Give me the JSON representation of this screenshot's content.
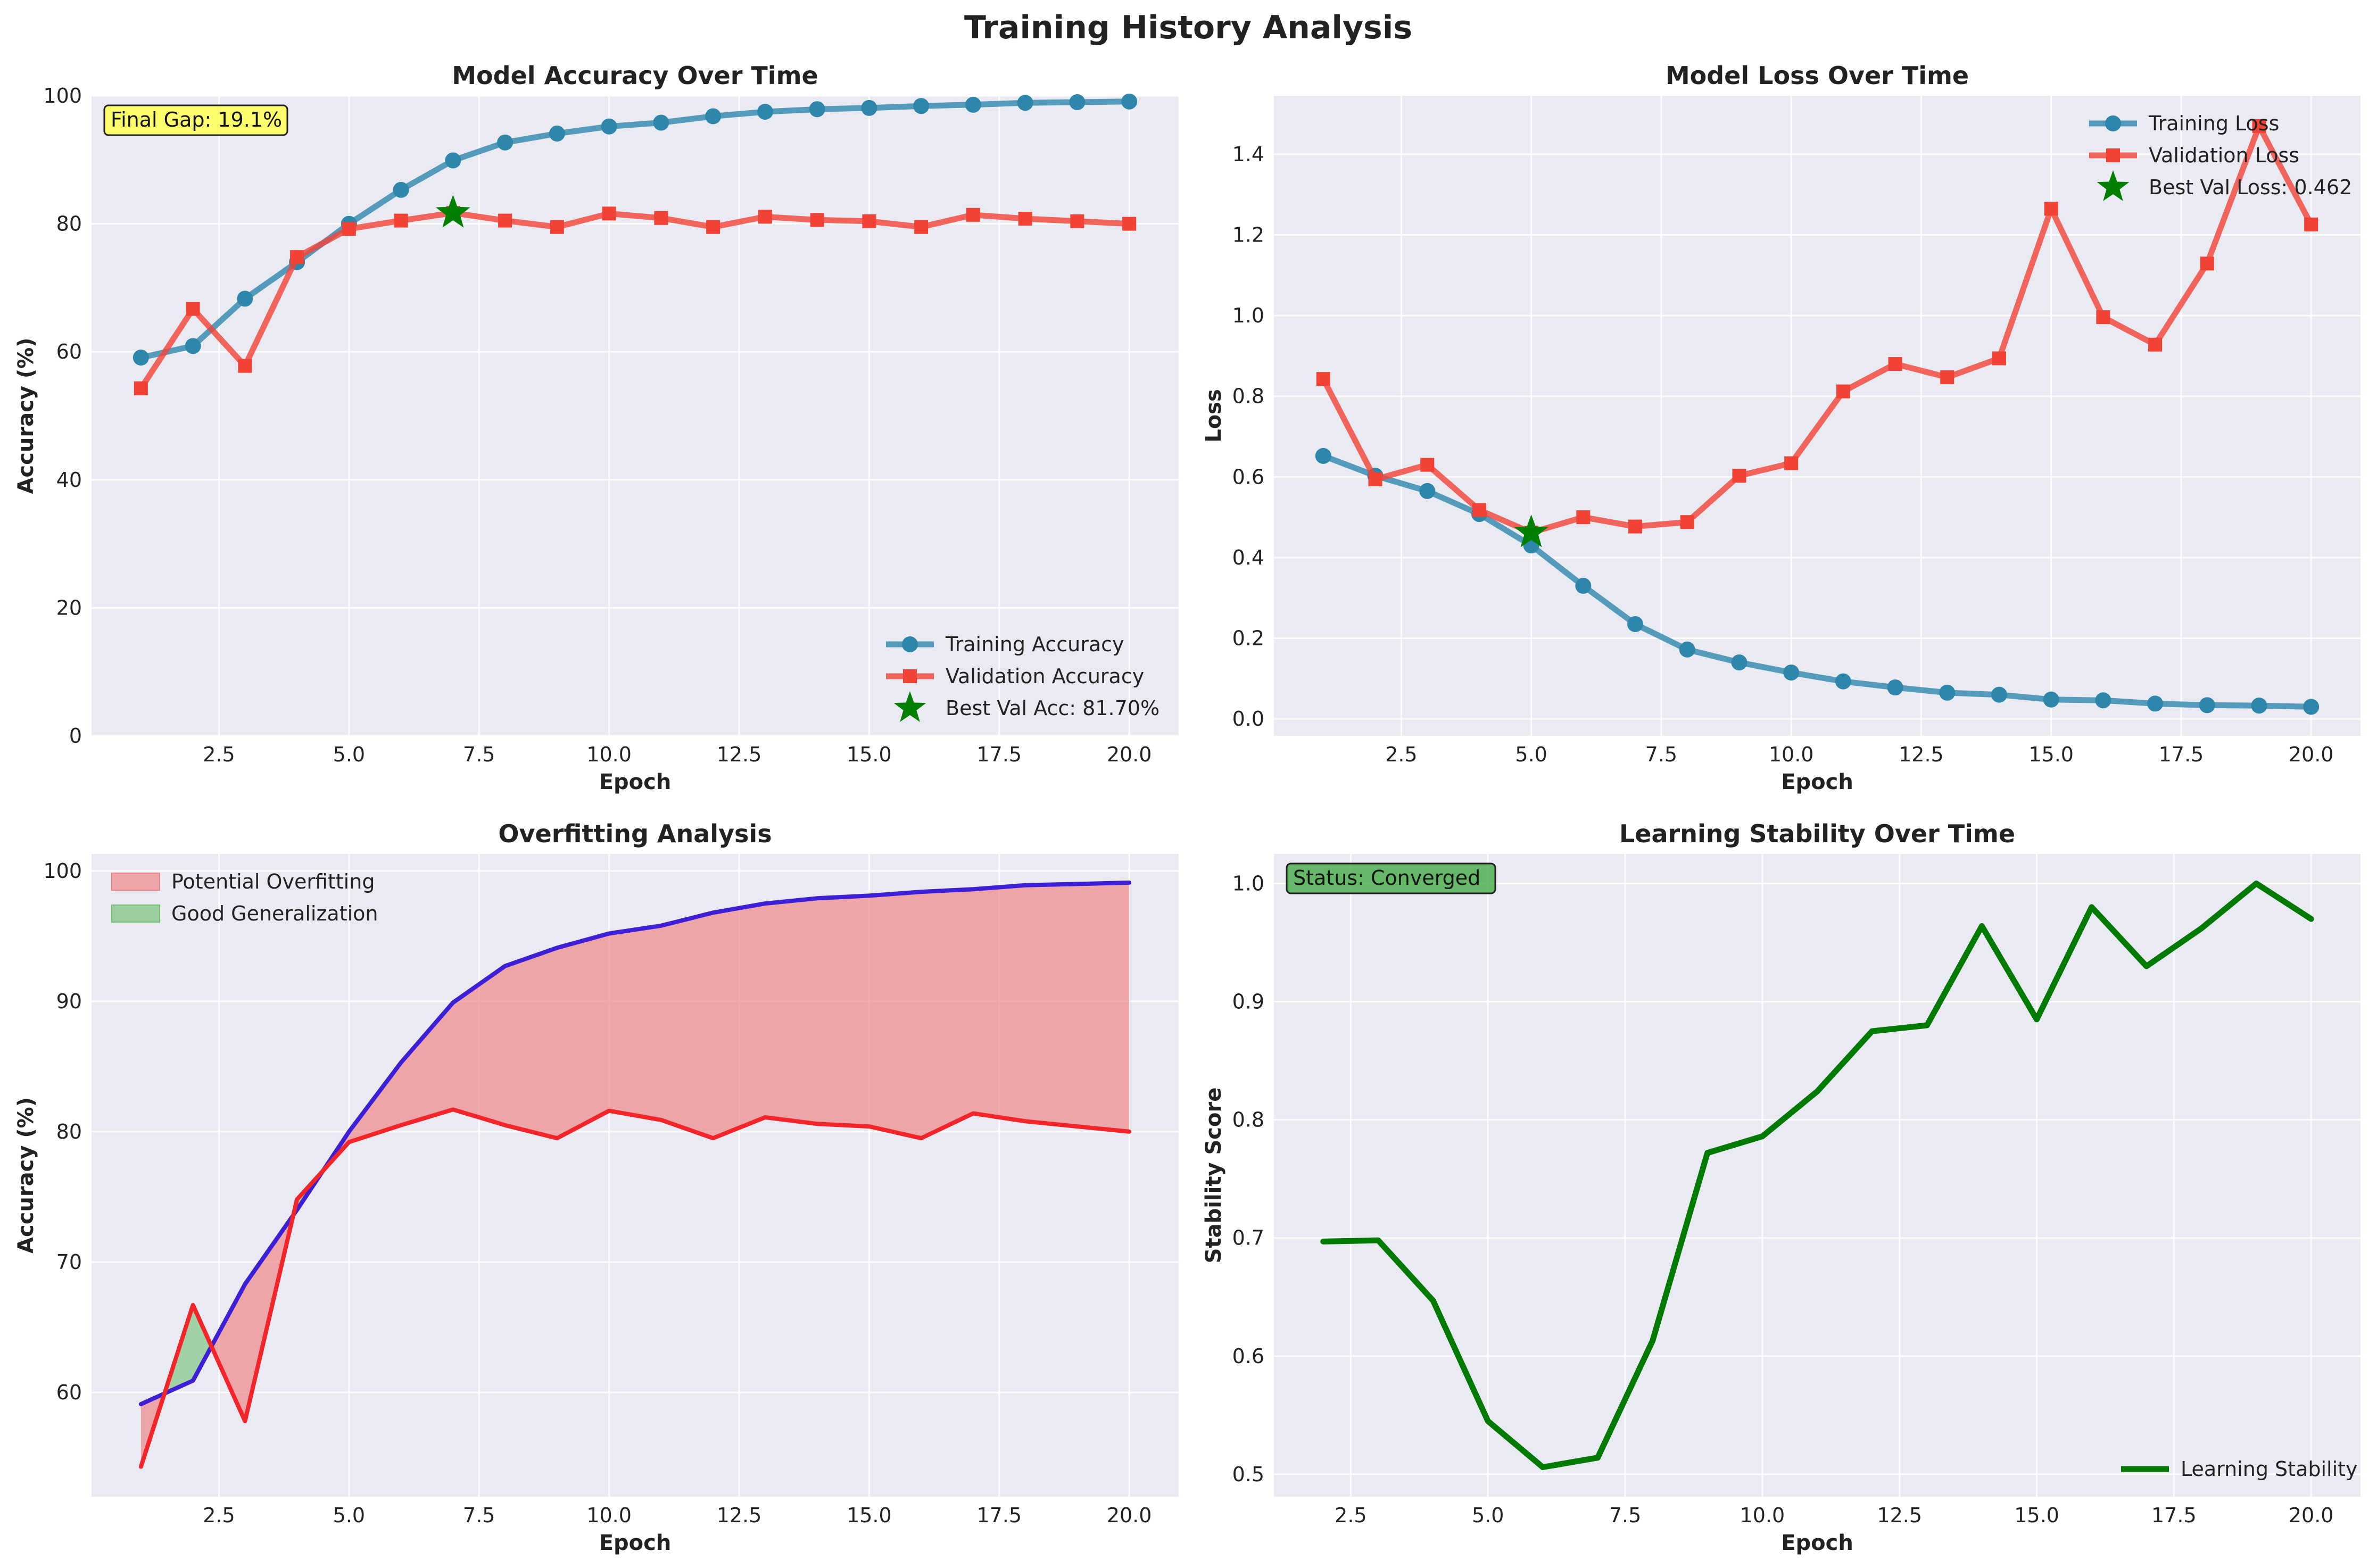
{
  "figure": {
    "suptitle": "Training History Analysis"
  },
  "colors": {
    "bg": "#EAEAF2",
    "grid": "#ffffff",
    "train": "#2E86AB",
    "val": "#F24236",
    "best": "#008000",
    "overfit_fill": "#F08080",
    "good_fill": "#6FBF73",
    "overfit_train_line": "#3C1FD6",
    "overfit_val_line": "#F2262A",
    "stability": "#007A00",
    "gap_box": "#FFFF55",
    "status_box": "#4CAF50"
  },
  "chart_data": [
    {
      "id": "accuracy",
      "type": "line",
      "title": "Model Accuracy Over Time",
      "xlabel": "Epoch",
      "ylabel": "Accuracy (%)",
      "xlim": [
        0.05,
        20.95
      ],
      "ylim": [
        0,
        100
      ],
      "xticks": [
        2.5,
        5.0,
        7.5,
        10.0,
        12.5,
        15.0,
        17.5,
        20.0
      ],
      "xtick_labels": [
        "2.5",
        "5.0",
        "7.5",
        "10.0",
        "12.5",
        "15.0",
        "17.5",
        "20.0"
      ],
      "yticks": [
        0,
        20,
        40,
        60,
        80,
        100
      ],
      "ytick_labels": [
        "0",
        "20",
        "40",
        "60",
        "80",
        "100"
      ],
      "x": [
        1,
        2,
        3,
        4,
        5,
        6,
        7,
        8,
        9,
        10,
        11,
        12,
        13,
        14,
        15,
        16,
        17,
        18,
        19,
        20
      ],
      "series": [
        {
          "name": "Training Accuracy",
          "marker": "circle",
          "color_key": "train",
          "values": [
            59.1,
            60.9,
            68.3,
            74.0,
            80.0,
            85.3,
            89.9,
            92.7,
            94.1,
            95.2,
            95.8,
            96.8,
            97.5,
            97.9,
            98.1,
            98.4,
            98.6,
            98.9,
            99.0,
            99.1
          ]
        },
        {
          "name": "Validation Accuracy",
          "marker": "square",
          "color_key": "val",
          "values": [
            54.3,
            66.7,
            57.8,
            74.8,
            79.2,
            80.5,
            81.7,
            80.5,
            79.5,
            81.6,
            80.9,
            79.5,
            81.1,
            80.6,
            80.4,
            79.5,
            81.4,
            80.8,
            80.4,
            80.0
          ]
        }
      ],
      "best_point": {
        "label": "Best Val Acc: 81.70%",
        "x": 7,
        "y": 81.7
      },
      "annotation": "Final Gap: 19.1%",
      "legend_loc": "lower-right"
    },
    {
      "id": "loss",
      "type": "line",
      "title": "Model Loss Over Time",
      "xlabel": "Epoch",
      "ylabel": "Loss",
      "xlim": [
        0.05,
        20.95
      ],
      "ylim": [
        -0.042,
        1.545
      ],
      "xticks": [
        2.5,
        5.0,
        7.5,
        10.0,
        12.5,
        15.0,
        17.5,
        20.0
      ],
      "xtick_labels": [
        "2.5",
        "5.0",
        "7.5",
        "10.0",
        "12.5",
        "15.0",
        "17.5",
        "20.0"
      ],
      "yticks": [
        0.0,
        0.2,
        0.4,
        0.6,
        0.8,
        1.0,
        1.2,
        1.4
      ],
      "ytick_labels": [
        "0.0",
        "0.2",
        "0.4",
        "0.6",
        "0.8",
        "1.0",
        "1.2",
        "1.4"
      ],
      "x": [
        1,
        2,
        3,
        4,
        5,
        6,
        7,
        8,
        9,
        10,
        11,
        12,
        13,
        14,
        15,
        16,
        17,
        18,
        19,
        20
      ],
      "series": [
        {
          "name": "Training Loss",
          "marker": "circle",
          "color_key": "train",
          "values": [
            0.652,
            0.603,
            0.565,
            0.508,
            0.43,
            0.33,
            0.235,
            0.172,
            0.14,
            0.115,
            0.093,
            0.078,
            0.065,
            0.06,
            0.048,
            0.046,
            0.038,
            0.034,
            0.033,
            0.03
          ]
        },
        {
          "name": "Validation Loss",
          "marker": "square",
          "color_key": "val",
          "values": [
            0.843,
            0.594,
            0.63,
            0.518,
            0.462,
            0.5,
            0.477,
            0.488,
            0.603,
            0.634,
            0.812,
            0.88,
            0.847,
            0.894,
            1.265,
            0.996,
            0.928,
            1.129,
            1.47,
            1.226
          ]
        }
      ],
      "best_point": {
        "label": "Best Val Loss: 0.462",
        "x": 5,
        "y": 0.462
      },
      "legend_loc": "upper-right"
    },
    {
      "id": "overfitting",
      "type": "area",
      "title": "Overfitting Analysis",
      "xlabel": "Epoch",
      "ylabel": "Accuracy (%)",
      "xlim": [
        0.05,
        20.95
      ],
      "ylim": [
        52.0,
        101.3
      ],
      "xticks": [
        2.5,
        5.0,
        7.5,
        10.0,
        12.5,
        15.0,
        17.5,
        20.0
      ],
      "xtick_labels": [
        "2.5",
        "5.0",
        "7.5",
        "10.0",
        "12.5",
        "15.0",
        "17.5",
        "20.0"
      ],
      "yticks": [
        60,
        70,
        80,
        90,
        100
      ],
      "ytick_labels": [
        "60",
        "70",
        "80",
        "90",
        "100"
      ],
      "x": [
        1,
        2,
        3,
        4,
        5,
        6,
        7,
        8,
        9,
        10,
        11,
        12,
        13,
        14,
        15,
        16,
        17,
        18,
        19,
        20
      ],
      "series": [
        {
          "name": "train",
          "color_key": "overfit_train_line",
          "values": [
            59.1,
            60.9,
            68.3,
            74.0,
            80.0,
            85.3,
            89.9,
            92.7,
            94.1,
            95.2,
            95.8,
            96.8,
            97.5,
            97.9,
            98.1,
            98.4,
            98.6,
            98.9,
            99.0,
            99.1
          ]
        },
        {
          "name": "val",
          "color_key": "overfit_val_line",
          "values": [
            54.3,
            66.7,
            57.8,
            74.8,
            79.2,
            80.5,
            81.7,
            80.5,
            79.5,
            81.6,
            80.9,
            79.5,
            81.1,
            80.6,
            80.4,
            79.5,
            81.4,
            80.8,
            80.4,
            80.0
          ]
        }
      ],
      "fills": [
        {
          "name": "Potential Overfitting",
          "color_key": "overfit_fill",
          "condition": "train>=val"
        },
        {
          "name": "Good Generalization",
          "color_key": "good_fill",
          "condition": "val>train"
        }
      ],
      "legend_loc": "upper-left"
    },
    {
      "id": "stability",
      "type": "line",
      "title": "Learning Stability Over Time",
      "xlabel": "Epoch",
      "ylabel": "Stability Score",
      "xlim": [
        1.1,
        20.9
      ],
      "ylim": [
        0.481,
        1.025
      ],
      "xticks": [
        2.5,
        5.0,
        7.5,
        10.0,
        12.5,
        15.0,
        17.5,
        20.0
      ],
      "xtick_labels": [
        "2.5",
        "5.0",
        "7.5",
        "10.0",
        "12.5",
        "15.0",
        "17.5",
        "20.0"
      ],
      "yticks": [
        0.5,
        0.6,
        0.7,
        0.8,
        0.9,
        1.0
      ],
      "ytick_labels": [
        "0.5",
        "0.6",
        "0.7",
        "0.8",
        "0.9",
        "1.0"
      ],
      "x": [
        2,
        3,
        4,
        5,
        6,
        7,
        8,
        9,
        10,
        11,
        12,
        13,
        14,
        15,
        16,
        17,
        18,
        19,
        20
      ],
      "series": [
        {
          "name": "Learning Stability",
          "color_key": "stability",
          "values": [
            0.697,
            0.698,
            0.647,
            0.545,
            0.506,
            0.514,
            0.613,
            0.772,
            0.786,
            0.824,
            0.875,
            0.88,
            0.964,
            0.885,
            0.98,
            0.93,
            0.962,
            1.0,
            0.97
          ]
        }
      ],
      "annotation": "Status: Converged",
      "legend_loc": "lower-right"
    }
  ]
}
